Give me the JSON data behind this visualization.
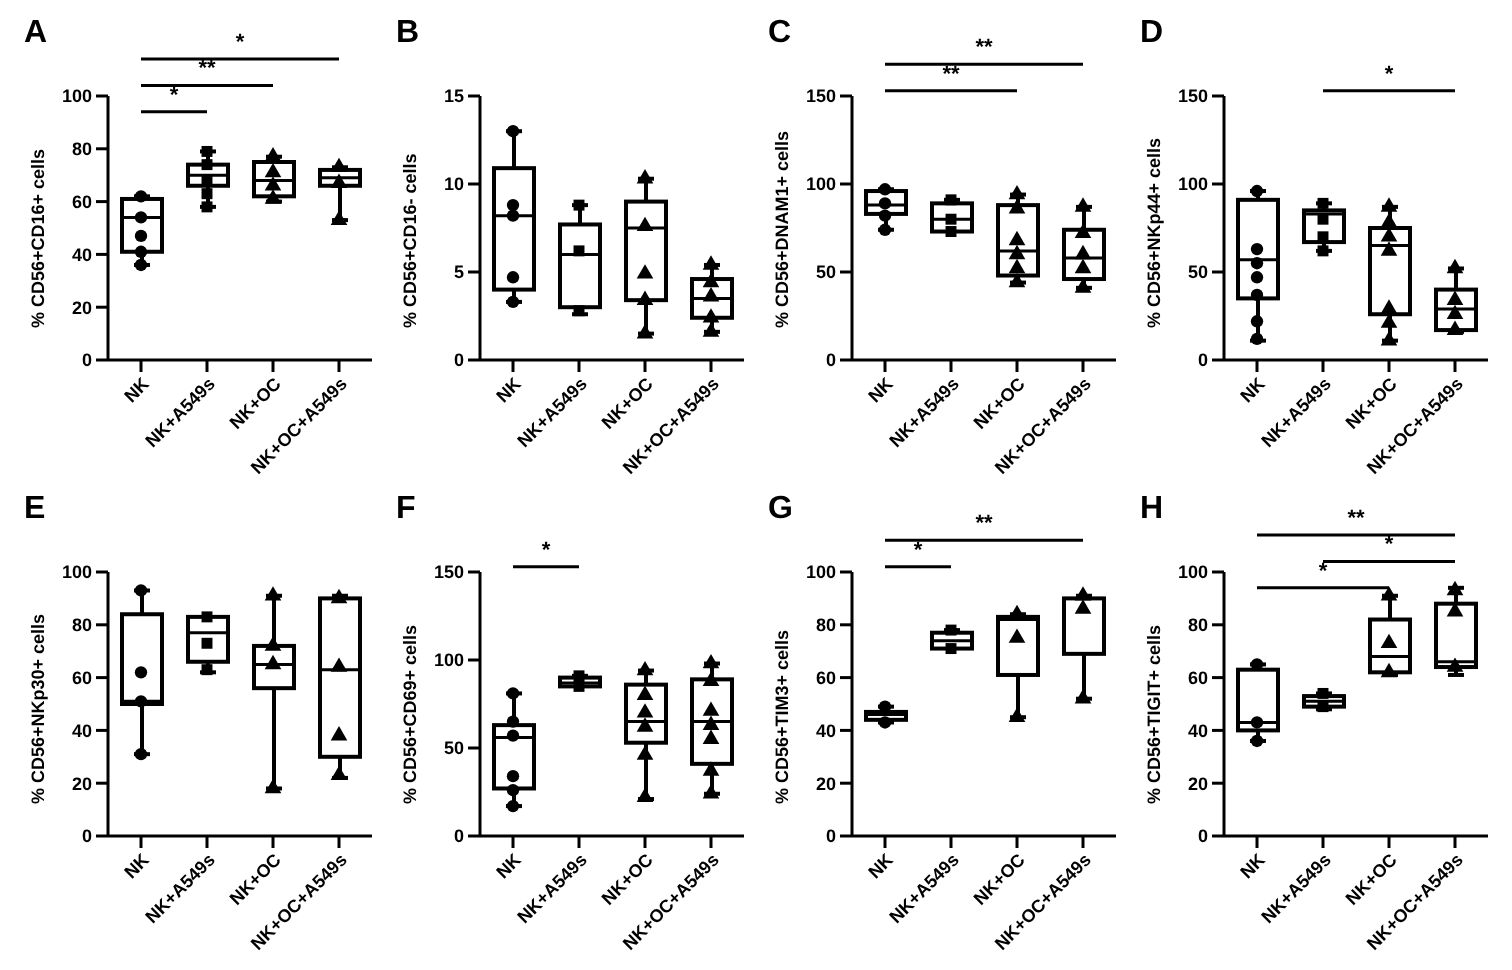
{
  "chart_data": [
    {
      "type": "box",
      "title": "A",
      "ylabel": "% CD56+CD16+ cells",
      "categories": [
        "NK",
        "NK+A549s",
        "NK+OC",
        "NK+OC+A549s"
      ],
      "ylim": [
        0,
        100
      ],
      "yticks": [
        0,
        20,
        40,
        60,
        80,
        100
      ],
      "color": "#000000",
      "boxes": [
        {
          "low": 36,
          "q1": 41,
          "median": 54,
          "q3": 61,
          "high": 62
        },
        {
          "low": 58,
          "q1": 66,
          "median": 70,
          "q3": 74,
          "high": 79
        },
        {
          "low": 60,
          "q1": 62,
          "median": 68,
          "q3": 75,
          "high": 77
        },
        {
          "low": 53,
          "q1": 66,
          "median": 69,
          "q3": 72,
          "high": 73
        }
      ],
      "series": [
        {
          "type": "scatter",
          "color": "#000000",
          "marker": "circle",
          "x": [
            "NK",
            "NK",
            "NK",
            "NK",
            "NK"
          ],
          "values": [
            62,
            54,
            47,
            41,
            36
          ]
        },
        {
          "type": "scatter",
          "color": "#000000",
          "marker": "square",
          "x": [
            "NK+A549s",
            "NK+A549s",
            "NK+A549s",
            "NK+A549s",
            "NK+A549s"
          ],
          "values": [
            79,
            74,
            68,
            63,
            58
          ]
        },
        {
          "type": "scatter",
          "color": "#000000",
          "marker": "triangle",
          "x": [
            "NK+OC",
            "NK+OC",
            "NK+OC",
            "NK+OC"
          ],
          "values": [
            77,
            71,
            66,
            61
          ]
        },
        {
          "type": "scatter",
          "color": "#000000",
          "marker": "triangle",
          "x": [
            "NK+OC+A549s",
            "NK+OC+A549s",
            "NK+OC+A549s"
          ],
          "values": [
            73,
            67,
            53
          ]
        }
      ],
      "annotations": [
        "*",
        "**",
        "*"
      ]
    },
    {
      "type": "box",
      "title": "B",
      "ylabel": "% CD56+CD16- cells",
      "categories": [
        "NK",
        "NK+A549s",
        "NK+OC",
        "NK+OC+A549s"
      ],
      "ylim": [
        0,
        15
      ],
      "yticks": [
        0,
        5,
        10,
        15
      ],
      "color": "#000000",
      "boxes": [
        {
          "low": 3.3,
          "q1": 4,
          "median": 8.2,
          "q3": 10.9,
          "high": 13
        },
        {
          "low": 2.6,
          "q1": 3,
          "median": 6,
          "q3": 7.7,
          "high": 8.8
        },
        {
          "low": 1.5,
          "q1": 3.4,
          "median": 7.5,
          "q3": 9,
          "high": 10.3
        },
        {
          "low": 1.6,
          "q1": 2.4,
          "median": 3.5,
          "q3": 4.6,
          "high": 5.4
        }
      ],
      "series": [
        {
          "type": "scatter",
          "color": "#000000",
          "marker": "circle",
          "x": [
            "NK",
            "NK",
            "NK",
            "NK",
            "NK"
          ],
          "values": [
            13,
            8.8,
            8.2,
            4.7,
            3.3
          ]
        },
        {
          "type": "scatter",
          "color": "#000000",
          "marker": "square",
          "x": [
            "NK+A549s",
            "NK+A549s",
            "NK+A549s"
          ],
          "values": [
            8.8,
            6.2,
            2.8
          ]
        },
        {
          "type": "scatter",
          "color": "#000000",
          "marker": "triangle",
          "x": [
            "NK+OC",
            "NK+OC",
            "NK+OC",
            "NK+OC",
            "NK+OC"
          ],
          "values": [
            10.3,
            7.6,
            4.9,
            3.4,
            1.5
          ]
        },
        {
          "type": "scatter",
          "color": "#000000",
          "marker": "triangle",
          "x": [
            "NK+OC+A549s",
            "NK+OC+A549s",
            "NK+OC+A549s",
            "NK+OC+A549s",
            "NK+OC+A549s"
          ],
          "values": [
            5.4,
            4.4,
            3.6,
            2.4,
            1.6
          ]
        }
      ]
    },
    {
      "type": "box",
      "title": "C",
      "ylabel": "% CD56+DNAM1+ cells",
      "categories": [
        "NK",
        "NK+A549s",
        "NK+OC",
        "NK+OC+A549s"
      ],
      "ylim": [
        0,
        150
      ],
      "yticks": [
        0,
        50,
        100,
        150
      ],
      "color": "#000000",
      "boxes": [
        {
          "low": 74,
          "q1": 83,
          "median": 88,
          "q3": 96,
          "high": 97
        },
        {
          "low": 73,
          "q1": 73,
          "median": 80,
          "q3": 89,
          "high": 91
        },
        {
          "low": 44,
          "q1": 48,
          "median": 62,
          "q3": 88,
          "high": 94
        },
        {
          "low": 41,
          "q1": 46,
          "median": 58,
          "q3": 74,
          "high": 87
        }
      ],
      "series": [
        {
          "type": "scatter",
          "color": "#000000",
          "marker": "circle",
          "x": [
            "NK",
            "NK",
            "NK",
            "NK"
          ],
          "values": [
            97,
            89,
            82,
            74
          ]
        },
        {
          "type": "scatter",
          "color": "#000000",
          "marker": "square",
          "x": [
            "NK+A549s",
            "NK+A549s",
            "NK+A549s"
          ],
          "values": [
            91,
            80,
            73
          ]
        },
        {
          "type": "scatter",
          "color": "#000000",
          "marker": "triangle",
          "x": [
            "NK+OC",
            "NK+OC",
            "NK+OC",
            "NK+OC",
            "NK+OC",
            "NK+OC"
          ],
          "values": [
            94,
            86,
            68,
            60,
            52,
            44
          ]
        },
        {
          "type": "scatter",
          "color": "#000000",
          "marker": "triangle",
          "x": [
            "NK+OC+A549s",
            "NK+OC+A549s",
            "NK+OC+A549s",
            "NK+OC+A549s",
            "NK+OC+A549s"
          ],
          "values": [
            87,
            72,
            60,
            52,
            41
          ]
        }
      ],
      "annotations": [
        "**",
        "**"
      ]
    },
    {
      "type": "box",
      "title": "D",
      "ylabel": "% CD56+NKp44+ cells",
      "categories": [
        "NK",
        "NK+A549s",
        "NK+OC",
        "NK+OC+A549s"
      ],
      "ylim": [
        0,
        150
      ],
      "yticks": [
        0,
        50,
        100,
        150
      ],
      "color": "#000000",
      "boxes": [
        {
          "low": 11,
          "q1": 35,
          "median": 57,
          "q3": 91,
          "high": 96
        },
        {
          "low": 62,
          "q1": 67,
          "median": 83,
          "q3": 85,
          "high": 89
        },
        {
          "low": 11,
          "q1": 26,
          "median": 65,
          "q3": 75,
          "high": 87
        },
        {
          "low": 16,
          "q1": 17,
          "median": 29,
          "q3": 40,
          "high": 52
        }
      ],
      "series": [
        {
          "type": "scatter",
          "color": "#000000",
          "marker": "circle",
          "x": [
            "NK",
            "NK",
            "NK",
            "NK",
            "NK",
            "NK",
            "NK"
          ],
          "values": [
            96,
            63,
            55,
            47,
            37,
            22,
            12
          ]
        },
        {
          "type": "scatter",
          "color": "#000000",
          "marker": "square",
          "x": [
            "NK+A549s",
            "NK+A549s",
            "NK+A549s",
            "NK+A549s"
          ],
          "values": [
            89,
            80,
            70,
            62
          ]
        },
        {
          "type": "scatter",
          "color": "#000000",
          "marker": "triangle",
          "x": [
            "NK+OC",
            "NK+OC",
            "NK+OC",
            "NK+OC",
            "NK+OC",
            "NK+OC",
            "NK+OC"
          ],
          "values": [
            87,
            78,
            70,
            62,
            29,
            21,
            11
          ]
        },
        {
          "type": "scatter",
          "color": "#000000",
          "marker": "triangle",
          "x": [
            "NK+OC+A549s",
            "NK+OC+A549s",
            "NK+OC+A549s",
            "NK+OC+A549s"
          ],
          "values": [
            52,
            34,
            26,
            17
          ]
        }
      ],
      "annotations": [
        "*"
      ]
    },
    {
      "type": "box",
      "title": "E",
      "ylabel": "% CD56+NKp30+ cells",
      "categories": [
        "NK",
        "NK+A549s",
        "NK+OC",
        "NK+OC+A549s"
      ],
      "ylim": [
        0,
        100
      ],
      "yticks": [
        0,
        20,
        40,
        60,
        80,
        100
      ],
      "color": "#000000",
      "boxes": [
        {
          "low": 31,
          "q1": 50,
          "median": 51,
          "q3": 84,
          "high": 93
        },
        {
          "low": 62,
          "q1": 66,
          "median": 77,
          "q3": 83,
          "high": 83
        },
        {
          "low": 18,
          "q1": 56,
          "median": 65,
          "q3": 72,
          "high": 91
        },
        {
          "low": 22,
          "q1": 30,
          "median": 63,
          "q3": 90,
          "high": 91
        }
      ],
      "series": [
        {
          "type": "scatter",
          "color": "#000000",
          "marker": "circle",
          "x": [
            "NK",
            "NK",
            "NK",
            "NK"
          ],
          "values": [
            93,
            62,
            51,
            31
          ]
        },
        {
          "type": "scatter",
          "color": "#000000",
          "marker": "square",
          "x": [
            "NK+A549s",
            "NK+A549s",
            "NK+A549s"
          ],
          "values": [
            83,
            73,
            63
          ]
        },
        {
          "type": "scatter",
          "color": "#000000",
          "marker": "triangle",
          "x": [
            "NK+OC",
            "NK+OC",
            "NK+OC",
            "NK+OC"
          ],
          "values": [
            91,
            72,
            65,
            18
          ]
        },
        {
          "type": "scatter",
          "color": "#000000",
          "marker": "triangle",
          "x": [
            "NK+OC+A549s",
            "NK+OC+A549s",
            "NK+OC+A549s",
            "NK+OC+A549s"
          ],
          "values": [
            90,
            64,
            38,
            23
          ]
        }
      ]
    },
    {
      "type": "box",
      "title": "F",
      "ylabel": "% CD56+CD69+ cells",
      "categories": [
        "NK",
        "NK+A549s",
        "NK+OC",
        "NK+OC+A549s"
      ],
      "ylim": [
        0,
        150
      ],
      "yticks": [
        0,
        50,
        100,
        150
      ],
      "color": "#000000",
      "boxes": [
        {
          "low": 17,
          "q1": 27,
          "median": 56,
          "q3": 63,
          "high": 81
        },
        {
          "low": 85,
          "q1": 85,
          "median": 87,
          "q3": 90,
          "high": 91
        },
        {
          "low": 21,
          "q1": 53,
          "median": 65,
          "q3": 86,
          "high": 94
        },
        {
          "low": 24,
          "q1": 41,
          "median": 65,
          "q3": 89,
          "high": 98
        }
      ],
      "series": [
        {
          "type": "scatter",
          "color": "#000000",
          "marker": "circle",
          "x": [
            "NK",
            "NK",
            "NK",
            "NK",
            "NK",
            "NK"
          ],
          "values": [
            81,
            65,
            57,
            34,
            26,
            17
          ]
        },
        {
          "type": "scatter",
          "color": "#000000",
          "marker": "square",
          "x": [
            "NK+A549s",
            "NK+A549s"
          ],
          "values": [
            91,
            85
          ]
        },
        {
          "type": "scatter",
          "color": "#000000",
          "marker": "triangle",
          "x": [
            "NK+OC",
            "NK+OC",
            "NK+OC",
            "NK+OC",
            "NK+OC",
            "NK+OC"
          ],
          "values": [
            94,
            80,
            70,
            62,
            46,
            22
          ]
        },
        {
          "type": "scatter",
          "color": "#000000",
          "marker": "triangle",
          "x": [
            "NK+OC+A549s",
            "NK+OC+A549s",
            "NK+OC+A549s",
            "NK+OC+A549s",
            "NK+OC+A549s",
            "NK+OC+A549s",
            "NK+OC+A549s"
          ],
          "values": [
            98,
            88,
            71,
            63,
            55,
            37,
            24
          ]
        }
      ],
      "annotations": [
        "*"
      ]
    },
    {
      "type": "box",
      "title": "G",
      "ylabel": "% CD56+TIM3+ cells",
      "categories": [
        "NK",
        "NK+A549s",
        "NK+OC",
        "NK+OC+A549s"
      ],
      "ylim": [
        0,
        100
      ],
      "yticks": [
        0,
        20,
        40,
        60,
        80,
        100
      ],
      "color": "#000000",
      "boxes": [
        {
          "low": 43,
          "q1": 44,
          "median": 46,
          "q3": 47,
          "high": 49
        },
        {
          "low": 71,
          "q1": 71,
          "median": 74,
          "q3": 77,
          "high": 78
        },
        {
          "low": 45,
          "q1": 61,
          "median": 82,
          "q3": 83,
          "high": 84
        },
        {
          "low": 52,
          "q1": 69,
          "median": 90,
          "q3": 90,
          "high": 91
        }
      ],
      "series": [
        {
          "type": "scatter",
          "color": "#000000",
          "marker": "circle",
          "x": [
            "NK",
            "NK"
          ],
          "values": [
            49,
            43
          ]
        },
        {
          "type": "scatter",
          "color": "#000000",
          "marker": "square",
          "x": [
            "NK+A549s",
            "NK+A549s"
          ],
          "values": [
            78,
            71
          ]
        },
        {
          "type": "scatter",
          "color": "#000000",
          "marker": "triangle",
          "x": [
            "NK+OC",
            "NK+OC",
            "NK+OC"
          ],
          "values": [
            84,
            75,
            45
          ]
        },
        {
          "type": "scatter",
          "color": "#000000",
          "marker": "triangle",
          "x": [
            "NK+OC+A549s",
            "NK+OC+A549s",
            "NK+OC+A549s"
          ],
          "values": [
            91,
            86,
            52
          ]
        }
      ],
      "annotations": [
        "*",
        "**"
      ]
    },
    {
      "type": "box",
      "title": "H",
      "ylabel": "% CD56+TIGIT+ cells",
      "categories": [
        "NK",
        "NK+A549s",
        "NK+OC",
        "NK+OC+A549s"
      ],
      "ylim": [
        0,
        100
      ],
      "yticks": [
        0,
        20,
        40,
        60,
        80,
        100
      ],
      "color": "#000000",
      "boxes": [
        {
          "low": 36,
          "q1": 40,
          "median": 43,
          "q3": 63,
          "high": 65
        },
        {
          "low": 48,
          "q1": 49,
          "median": 51,
          "q3": 53,
          "high": 54
        },
        {
          "low": 61,
          "q1": 62,
          "median": 68,
          "q3": 82,
          "high": 91
        },
        {
          "low": 61,
          "q1": 64,
          "median": 66,
          "q3": 88,
          "high": 94
        }
      ],
      "series": [
        {
          "type": "scatter",
          "color": "#000000",
          "marker": "circle",
          "x": [
            "NK",
            "NK",
            "NK"
          ],
          "values": [
            65,
            43,
            36
          ]
        },
        {
          "type": "scatter",
          "color": "#000000",
          "marker": "square",
          "x": [
            "NK+A549s",
            "NK+A549s"
          ],
          "values": [
            54,
            49
          ]
        },
        {
          "type": "scatter",
          "color": "#000000",
          "marker": "triangle",
          "x": [
            "NK+OC",
            "NK+OC",
            "NK+OC"
          ],
          "values": [
            91,
            73,
            62
          ]
        },
        {
          "type": "scatter",
          "color": "#000000",
          "marker": "triangle",
          "x": [
            "NK+OC+A549s",
            "NK+OC+A549s",
            "NK+OC+A549s"
          ],
          "values": [
            93,
            85,
            64
          ]
        }
      ],
      "annotations": [
        "*",
        "*",
        "**"
      ]
    }
  ]
}
